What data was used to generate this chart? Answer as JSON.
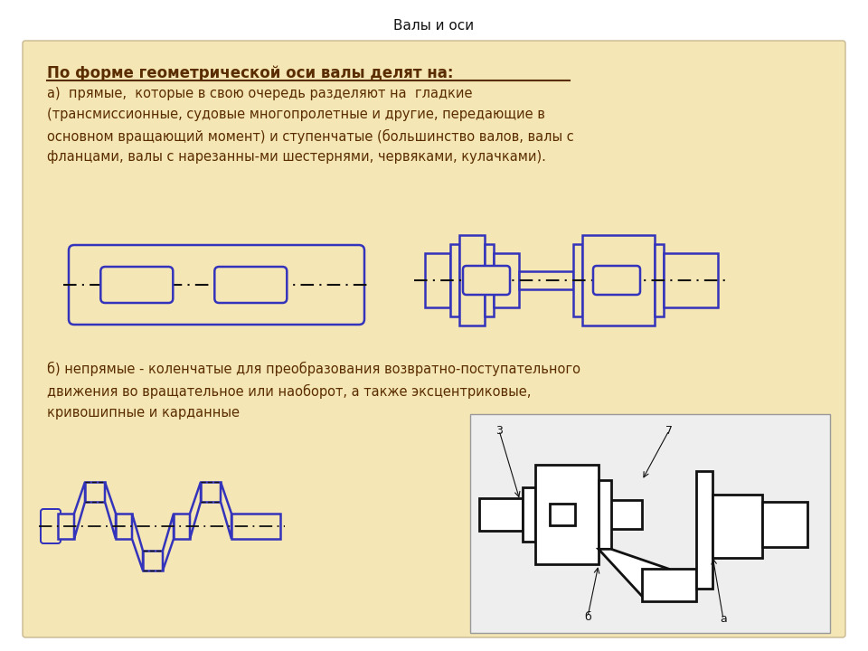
{
  "title": "Валы и оси",
  "bg_color": "#F5E6B5",
  "outer_bg": "#FFFFFF",
  "blue": "#3333BB",
  "blue_light": "#8888CC",
  "text_color": "#5A2D00",
  "black": "#111111",
  "heading": "По форме геометрической оси валы делят на:",
  "para_a": "а)  прямые,  которые в свою очередь разделяют на  гладкие\n(трансмиссионные, судовые многопролетные и другие, передающие в\nосновном вращающий момент) и ступенчатые (большинство валов, валы с\nфланцами, валы с нарезанны-ми шестернями, червяками, кулачками).",
  "para_b": "б) непрямые - коленчатые для преобразования возвратно-поступательного\nдвижения во вращательное или наоборот, а также эксцентриковые,\nкривошипные и карданные",
  "title_fontsize": 11,
  "heading_fontsize": 12,
  "body_fontsize": 10.5
}
